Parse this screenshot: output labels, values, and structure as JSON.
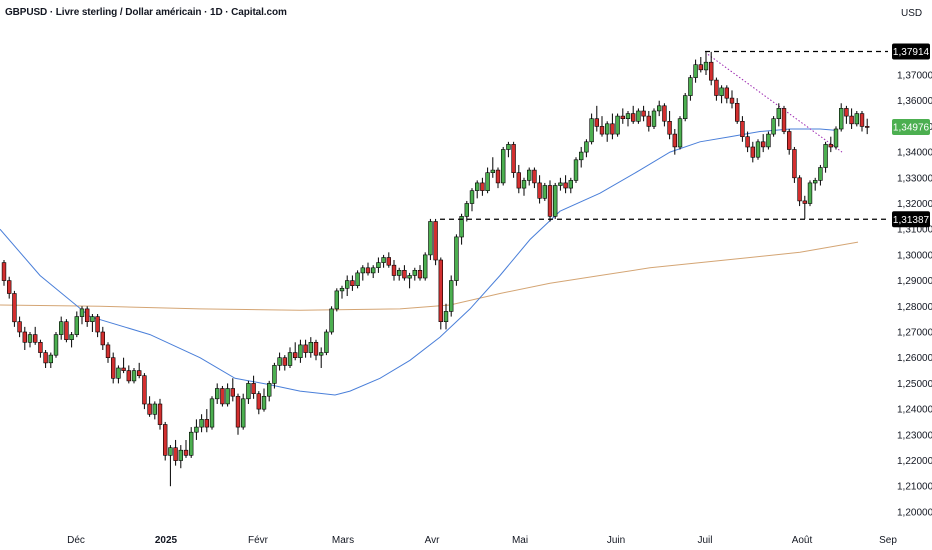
{
  "header": {
    "title": "GBPUSD · Livre sterling / Dollar américain · 1D · Capital.com",
    "currency": "USD"
  },
  "chart_data": {
    "type": "candlestick",
    "title": "GBPUSD · Livre sterling / Dollar américain · 1D · Capital.com",
    "ylim": [
      1.1935,
      1.3885
    ],
    "y_ticks": [
      "1,20000",
      "1,21000",
      "1,22000",
      "1,23000",
      "1,24000",
      "1,25000",
      "1,26000",
      "1,27000",
      "1,28000",
      "1,29000",
      "1,30000",
      "1,31000",
      "1,32000",
      "1,33000",
      "1,34000",
      "1,35000",
      "1,36000",
      "1,37000"
    ],
    "x_ticks": [
      {
        "label": "Déc",
        "bold": false
      },
      {
        "label": "2025",
        "bold": true
      },
      {
        "label": "Févr",
        "bold": false
      },
      {
        "label": "Mars",
        "bold": false
      },
      {
        "label": "Avr",
        "bold": false
      },
      {
        "label": "Mai",
        "bold": false
      },
      {
        "label": "Juin",
        "bold": false
      },
      {
        "label": "Juil",
        "bold": false
      },
      {
        "label": "Août",
        "bold": false
      },
      {
        "label": "Sep",
        "bold": false
      }
    ],
    "price_labels": [
      {
        "text": "1,37914",
        "value": 1.37914,
        "color": "#000000"
      },
      {
        "text": "1,34976",
        "value": 1.34976,
        "color": "#4caf50"
      },
      {
        "text": "1,31387",
        "value": 1.31387,
        "color": "#000000"
      }
    ],
    "horizontal_levels": [
      1.37914,
      1.31387
    ],
    "colors": {
      "up": "#4caf50",
      "down": "#d32f2f",
      "ma_fast": "#4a7fd9",
      "ma_slow": "#d4a574",
      "trendline": "#9c27b0"
    },
    "candles": [
      [
        1.297,
        1.298,
        1.288,
        1.29
      ],
      [
        1.29,
        1.2915,
        1.283,
        1.285
      ],
      [
        1.285,
        1.286,
        1.272,
        1.274
      ],
      [
        1.274,
        1.276,
        1.268,
        1.27
      ],
      [
        1.27,
        1.272,
        1.263,
        1.266
      ],
      [
        1.266,
        1.27,
        1.264,
        1.269
      ],
      [
        1.269,
        1.272,
        1.265,
        1.266
      ],
      [
        1.266,
        1.267,
        1.26,
        1.262
      ],
      [
        1.262,
        1.263,
        1.256,
        1.258
      ],
      [
        1.258,
        1.262,
        1.256,
        1.261
      ],
      [
        1.261,
        1.27,
        1.26,
        1.269
      ],
      [
        1.269,
        1.276,
        1.267,
        1.274
      ],
      [
        1.274,
        1.275,
        1.266,
        1.267
      ],
      [
        1.267,
        1.27,
        1.264,
        1.269
      ],
      [
        1.269,
        1.278,
        1.268,
        1.276
      ],
      [
        1.276,
        1.28,
        1.273,
        1.279
      ],
      [
        1.279,
        1.28,
        1.272,
        1.274
      ],
      [
        1.274,
        1.277,
        1.27,
        1.276
      ],
      [
        1.276,
        1.277,
        1.268,
        1.27
      ],
      [
        1.27,
        1.272,
        1.263,
        1.265
      ],
      [
        1.265,
        1.266,
        1.258,
        1.26
      ],
      [
        1.26,
        1.262,
        1.25,
        1.252
      ],
      [
        1.252,
        1.257,
        1.25,
        1.256
      ],
      [
        1.256,
        1.26,
        1.254,
        1.255
      ],
      [
        1.255,
        1.257,
        1.25,
        1.251
      ],
      [
        1.251,
        1.256,
        1.25,
        1.255
      ],
      [
        1.255,
        1.258,
        1.252,
        1.253
      ],
      [
        1.253,
        1.254,
        1.24,
        1.242
      ],
      [
        1.242,
        1.245,
        1.237,
        1.238
      ],
      [
        1.238,
        1.243,
        1.236,
        1.242
      ],
      [
        1.242,
        1.244,
        1.232,
        1.234
      ],
      [
        1.234,
        1.235,
        1.22,
        1.222
      ],
      [
        1.222,
        1.226,
        1.21,
        1.225
      ],
      [
        1.225,
        1.228,
        1.218,
        1.22
      ],
      [
        1.22,
        1.226,
        1.217,
        1.224
      ],
      [
        1.224,
        1.228,
        1.221,
        1.222
      ],
      [
        1.222,
        1.233,
        1.221,
        1.231
      ],
      [
        1.231,
        1.236,
        1.228,
        1.233
      ],
      [
        1.233,
        1.238,
        1.231,
        1.236
      ],
      [
        1.236,
        1.24,
        1.231,
        1.233
      ],
      [
        1.233,
        1.245,
        1.232,
        1.244
      ],
      [
        1.244,
        1.25,
        1.242,
        1.248
      ],
      [
        1.248,
        1.249,
        1.241,
        1.242
      ],
      [
        1.242,
        1.25,
        1.241,
        1.248
      ],
      [
        1.248,
        1.252,
        1.243,
        1.245
      ],
      [
        1.245,
        1.246,
        1.23,
        1.233
      ],
      [
        1.233,
        1.246,
        1.232,
        1.244
      ],
      [
        1.244,
        1.251,
        1.242,
        1.25
      ],
      [
        1.25,
        1.253,
        1.244,
        1.246
      ],
      [
        1.246,
        1.247,
        1.238,
        1.24
      ],
      [
        1.24,
        1.248,
        1.239,
        1.245
      ],
      [
        1.245,
        1.251,
        1.243,
        1.25
      ],
      [
        1.25,
        1.258,
        1.248,
        1.257
      ],
      [
        1.257,
        1.262,
        1.255,
        1.26
      ],
      [
        1.26,
        1.261,
        1.255,
        1.257
      ],
      [
        1.257,
        1.264,
        1.256,
        1.262
      ],
      [
        1.262,
        1.266,
        1.259,
        1.26
      ],
      [
        1.26,
        1.267,
        1.258,
        1.265
      ],
      [
        1.265,
        1.267,
        1.26,
        1.262
      ],
      [
        1.262,
        1.268,
        1.26,
        1.266
      ],
      [
        1.266,
        1.267,
        1.259,
        1.261
      ],
      [
        1.261,
        1.264,
        1.256,
        1.262
      ],
      [
        1.262,
        1.271,
        1.261,
        1.27
      ],
      [
        1.27,
        1.28,
        1.269,
        1.279
      ],
      [
        1.279,
        1.287,
        1.278,
        1.286
      ],
      [
        1.286,
        1.288,
        1.283,
        1.287
      ],
      [
        1.287,
        1.292,
        1.284,
        1.29
      ],
      [
        1.29,
        1.292,
        1.286,
        1.288
      ],
      [
        1.288,
        1.294,
        1.287,
        1.293
      ],
      [
        1.293,
        1.296,
        1.29,
        1.295
      ],
      [
        1.295,
        1.297,
        1.292,
        1.293
      ],
      [
        1.293,
        1.296,
        1.291,
        1.295
      ],
      [
        1.295,
        1.299,
        1.293,
        1.297
      ],
      [
        1.297,
        1.3,
        1.295,
        1.299
      ],
      [
        1.299,
        1.301,
        1.295,
        1.296
      ],
      [
        1.296,
        1.298,
        1.29,
        1.292
      ],
      [
        1.292,
        1.295,
        1.29,
        1.294
      ],
      [
        1.294,
        1.296,
        1.29,
        1.291
      ],
      [
        1.291,
        1.293,
        1.287,
        1.292
      ],
      [
        1.292,
        1.295,
        1.29,
        1.294
      ],
      [
        1.294,
        1.296,
        1.29,
        1.291
      ],
      [
        1.291,
        1.301,
        1.29,
        1.3
      ],
      [
        1.3,
        1.314,
        1.298,
        1.313
      ],
      [
        1.313,
        1.314,
        1.296,
        1.298
      ],
      [
        1.298,
        1.299,
        1.271,
        1.274
      ],
      [
        1.274,
        1.281,
        1.271,
        1.278
      ],
      [
        1.278,
        1.292,
        1.276,
        1.29
      ],
      [
        1.29,
        1.308,
        1.288,
        1.307
      ],
      [
        1.307,
        1.316,
        1.304,
        1.315
      ],
      [
        1.315,
        1.321,
        1.313,
        1.32
      ],
      [
        1.32,
        1.326,
        1.317,
        1.325
      ],
      [
        1.325,
        1.329,
        1.322,
        1.328
      ],
      [
        1.328,
        1.33,
        1.323,
        1.325
      ],
      [
        1.325,
        1.334,
        1.324,
        1.332
      ],
      [
        1.332,
        1.338,
        1.33,
        1.333
      ],
      [
        1.333,
        1.334,
        1.326,
        1.328
      ],
      [
        1.328,
        1.342,
        1.327,
        1.341
      ],
      [
        1.341,
        1.344,
        1.338,
        1.343
      ],
      [
        1.343,
        1.344,
        1.33,
        1.332
      ],
      [
        1.332,
        1.335,
        1.324,
        1.326
      ],
      [
        1.326,
        1.33,
        1.323,
        1.329
      ],
      [
        1.329,
        1.334,
        1.327,
        1.333
      ],
      [
        1.333,
        1.334,
        1.326,
        1.328
      ],
      [
        1.328,
        1.331,
        1.32,
        1.322
      ],
      [
        1.322,
        1.328,
        1.321,
        1.327
      ],
      [
        1.327,
        1.329,
        1.313,
        1.315
      ],
      [
        1.315,
        1.328,
        1.314,
        1.327
      ],
      [
        1.327,
        1.33,
        1.325,
        1.328
      ],
      [
        1.328,
        1.331,
        1.324,
        1.326
      ],
      [
        1.326,
        1.33,
        1.324,
        1.329
      ],
      [
        1.329,
        1.338,
        1.328,
        1.337
      ],
      [
        1.337,
        1.342,
        1.334,
        1.34
      ],
      [
        1.34,
        1.345,
        1.338,
        1.344
      ],
      [
        1.344,
        1.355,
        1.343,
        1.353
      ],
      [
        1.353,
        1.358,
        1.348,
        1.35
      ],
      [
        1.35,
        1.354,
        1.346,
        1.347
      ],
      [
        1.347,
        1.352,
        1.344,
        1.351
      ],
      [
        1.351,
        1.355,
        1.345,
        1.347
      ],
      [
        1.347,
        1.355,
        1.346,
        1.354
      ],
      [
        1.354,
        1.357,
        1.351,
        1.353
      ],
      [
        1.353,
        1.356,
        1.35,
        1.355
      ],
      [
        1.355,
        1.358,
        1.351,
        1.352
      ],
      [
        1.352,
        1.357,
        1.351,
        1.356
      ],
      [
        1.356,
        1.358,
        1.352,
        1.354
      ],
      [
        1.354,
        1.356,
        1.348,
        1.35
      ],
      [
        1.35,
        1.357,
        1.349,
        1.356
      ],
      [
        1.356,
        1.36,
        1.354,
        1.358
      ],
      [
        1.358,
        1.359,
        1.35,
        1.352
      ],
      [
        1.352,
        1.356,
        1.345,
        1.347
      ],
      [
        1.347,
        1.349,
        1.339,
        1.342
      ],
      [
        1.342,
        1.354,
        1.341,
        1.353
      ],
      [
        1.353,
        1.363,
        1.352,
        1.362
      ],
      [
        1.362,
        1.37,
        1.36,
        1.369
      ],
      [
        1.369,
        1.376,
        1.367,
        1.374
      ],
      [
        1.374,
        1.377,
        1.371,
        1.372
      ],
      [
        1.372,
        1.379,
        1.37,
        1.375
      ],
      [
        1.375,
        1.379,
        1.366,
        1.368
      ],
      [
        1.368,
        1.369,
        1.36,
        1.362
      ],
      [
        1.362,
        1.366,
        1.359,
        1.365
      ],
      [
        1.365,
        1.366,
        1.359,
        1.361
      ],
      [
        1.361,
        1.364,
        1.357,
        1.359
      ],
      [
        1.359,
        1.361,
        1.351,
        1.352
      ],
      [
        1.352,
        1.354,
        1.344,
        1.346
      ],
      [
        1.346,
        1.348,
        1.34,
        1.342
      ],
      [
        1.342,
        1.344,
        1.336,
        1.338
      ],
      [
        1.338,
        1.345,
        1.337,
        1.344
      ],
      [
        1.344,
        1.347,
        1.34,
        1.342
      ],
      [
        1.342,
        1.348,
        1.341,
        1.347
      ],
      [
        1.347,
        1.354,
        1.346,
        1.353
      ],
      [
        1.353,
        1.359,
        1.35,
        1.357
      ],
      [
        1.357,
        1.358,
        1.347,
        1.348
      ],
      [
        1.348,
        1.349,
        1.339,
        1.341
      ],
      [
        1.341,
        1.342,
        1.328,
        1.33
      ],
      [
        1.33,
        1.331,
        1.319,
        1.321
      ],
      [
        1.321,
        1.323,
        1.314,
        1.32
      ],
      [
        1.32,
        1.329,
        1.319,
        1.328
      ],
      [
        1.328,
        1.33,
        1.325,
        1.329
      ],
      [
        1.329,
        1.335,
        1.327,
        1.334
      ],
      [
        1.334,
        1.344,
        1.332,
        1.343
      ],
      [
        1.343,
        1.346,
        1.34,
        1.342
      ],
      [
        1.342,
        1.35,
        1.341,
        1.349
      ],
      [
        1.349,
        1.359,
        1.348,
        1.357
      ],
      [
        1.357,
        1.358,
        1.351,
        1.354
      ],
      [
        1.354,
        1.357,
        1.349,
        1.351
      ],
      [
        1.351,
        1.356,
        1.35,
        1.355
      ],
      [
        1.355,
        1.356,
        1.348,
        1.35
      ],
      [
        1.35,
        1.353,
        1.347,
        1.3498
      ]
    ],
    "ma_fast": [
      [
        0,
        1.31
      ],
      [
        40,
        1.292
      ],
      [
        90,
        1.276
      ],
      [
        150,
        1.269
      ],
      [
        200,
        1.26
      ],
      [
        235,
        1.252
      ],
      [
        270,
        1.2495
      ],
      [
        300,
        1.247
      ],
      [
        335,
        1.2455
      ],
      [
        350,
        1.247
      ],
      [
        380,
        1.252
      ],
      [
        410,
        1.259
      ],
      [
        440,
        1.268
      ],
      [
        470,
        1.279
      ],
      [
        500,
        1.292
      ],
      [
        530,
        1.306
      ],
      [
        560,
        1.317
      ],
      [
        600,
        1.324
      ],
      [
        640,
        1.333
      ],
      [
        670,
        1.34
      ],
      [
        700,
        1.344
      ],
      [
        730,
        1.346
      ],
      [
        760,
        1.348
      ],
      [
        790,
        1.349
      ],
      [
        820,
        1.349
      ],
      [
        835,
        1.3485
      ]
    ],
    "ma_slow": [
      [
        0,
        1.2805
      ],
      [
        100,
        1.28
      ],
      [
        200,
        1.279
      ],
      [
        300,
        1.2785
      ],
      [
        400,
        1.279
      ],
      [
        450,
        1.2805
      ],
      [
        500,
        1.285
      ],
      [
        550,
        1.289
      ],
      [
        600,
        1.292
      ],
      [
        650,
        1.295
      ],
      [
        700,
        1.297
      ],
      [
        750,
        1.299
      ],
      [
        800,
        1.301
      ],
      [
        858,
        1.305
      ]
    ],
    "trendline": [
      [
        708,
        1.378
      ],
      [
        842,
        1.34
      ]
    ]
  }
}
